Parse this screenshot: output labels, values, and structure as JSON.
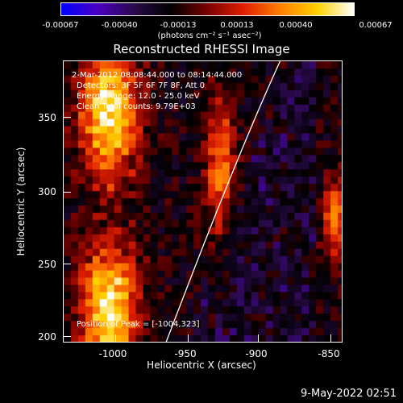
{
  "colorbar": {
    "ticks": [
      "-0.00067",
      "-0.00040",
      "-0.00013",
      "0.00013",
      "0.00040",
      "0.00067"
    ],
    "units": "(photons cm⁻² s⁻¹ asec⁻²)",
    "colormap": [
      "#0000ff",
      "#4a00c0",
      "#2a0a4a",
      "#000000",
      "#7a0000",
      "#e02000",
      "#ff8000",
      "#ffd000",
      "#ffffff"
    ]
  },
  "title": "Reconstructed RHESSI Image",
  "info": {
    "time": "2-Mar-2012 08:08:44.000 to 08:14:44.000",
    "detectors": "Detectors: 3F 5F 6F 7F 8F, Att 0",
    "energy": "Energy Range: 12.0 - 25.0 keV",
    "clean": "Clean    Total counts: 9.79E+03",
    "peak": "Position of Peak = [-1004,323]"
  },
  "axes": {
    "xlabel": "Heliocentric X (arcsec)",
    "ylabel": "Heliocentric Y (arcsec)",
    "xticks": [
      "-1000",
      "-950",
      "-900",
      "-850"
    ],
    "yticks": [
      "350",
      "300",
      "250",
      "200"
    ]
  },
  "footer": "9-May-2022 02:51"
}
